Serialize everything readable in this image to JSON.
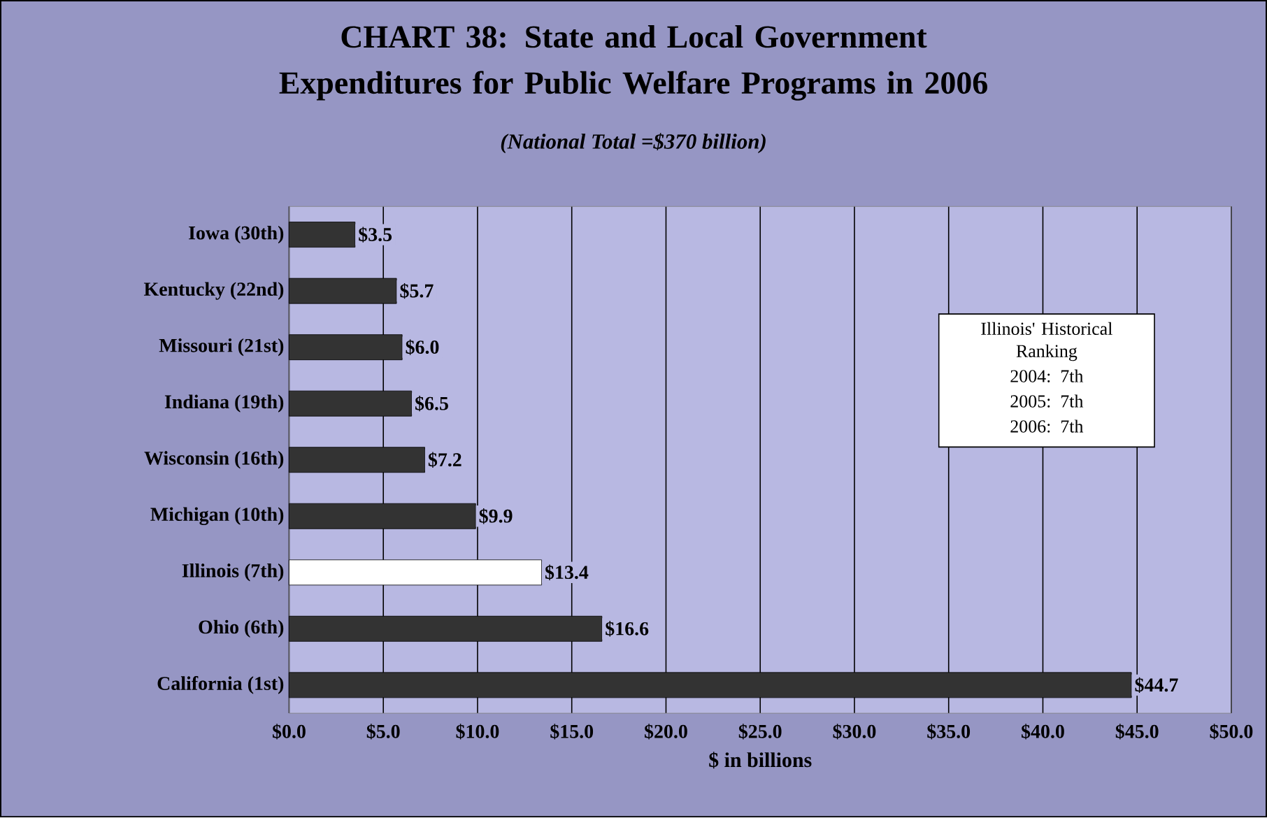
{
  "chart_data": {
    "type": "bar",
    "orientation": "horizontal",
    "title": "CHART 38: State and Local Government Expenditures for Public Welfare Programs in 2006",
    "subtitle": "(National Total =$370 billion)",
    "xlabel": "$ in billions",
    "categories": [
      "Iowa (30th)",
      "Kentucky (22nd)",
      "Missouri (21st)",
      "Indiana (19th)",
      "Wisconsin (16th)",
      "Michigan (10th)",
      "Illinois (7th)",
      "Ohio (6th)",
      "California (1st)"
    ],
    "values": [
      3.5,
      5.7,
      6.0,
      6.5,
      7.2,
      9.9,
      13.4,
      16.6,
      44.7
    ],
    "value_labels": [
      "$3.5",
      "$5.7",
      "$6.0",
      "$6.5",
      "$7.2",
      "$9.9",
      "$13.4",
      "$16.6",
      "$44.7"
    ],
    "colors": [
      "#333333",
      "#333333",
      "#333333",
      "#333333",
      "#333333",
      "#333333",
      "#ffffff",
      "#333333",
      "#333333"
    ],
    "xlim": [
      0,
      50
    ],
    "xticks": [
      {
        "value": 0,
        "label": "$0.0"
      },
      {
        "value": 5,
        "label": "$5.0"
      },
      {
        "value": 10,
        "label": "$10.0"
      },
      {
        "value": 15,
        "label": "$15.0"
      },
      {
        "value": 20,
        "label": "$20.0"
      },
      {
        "value": 25,
        "label": "$25.0"
      },
      {
        "value": 30,
        "label": "$30.0"
      },
      {
        "value": 35,
        "label": "$35.0"
      },
      {
        "value": 40,
        "label": "$40.0"
      },
      {
        "value": 45,
        "label": "$45.0"
      },
      {
        "value": 50,
        "label": "$50.0"
      }
    ],
    "grid": "x",
    "annotations": [
      "Illinois' Historical Ranking",
      "2004:  7th",
      "2005:  7th",
      "2006:  7th"
    ]
  }
}
